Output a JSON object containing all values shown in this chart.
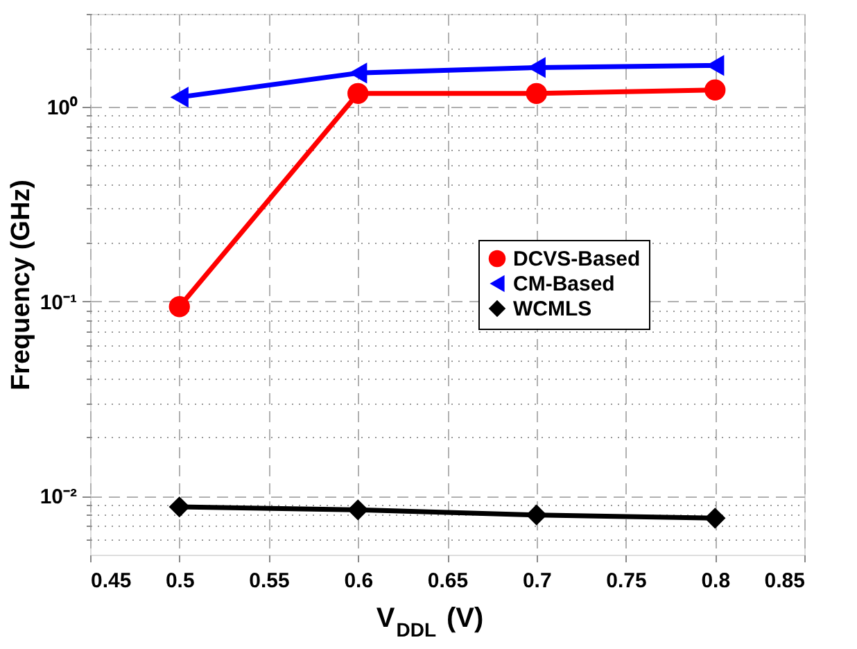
{
  "chart_data": {
    "type": "line",
    "xlabel": "V$_{DDL}$ (V)",
    "ylabel": "Frequency (GHz)",
    "x": [
      0.5,
      0.6,
      0.7,
      0.8
    ],
    "series": [
      {
        "name": "DCVS-Based",
        "color": "#ff0000",
        "marker": "circle",
        "values": [
          0.094,
          1.17,
          1.17,
          1.22
        ]
      },
      {
        "name": "CM-Based",
        "color": "#0000ff",
        "marker": "triangle-left",
        "values": [
          1.12,
          1.49,
          1.59,
          1.63
        ]
      },
      {
        "name": "WCMLS",
        "color": "#000000",
        "marker": "diamond",
        "values": [
          0.0088,
          0.0085,
          0.008,
          0.0077
        ]
      }
    ],
    "log": "y",
    "xlim": [
      0.45,
      0.85
    ],
    "xticks": [
      0.45,
      0.5,
      0.55,
      0.6,
      0.65,
      0.7,
      0.75,
      0.8,
      0.85
    ],
    "ylim": [
      0.005,
      3
    ],
    "yticks": [
      {
        "value": 0.006,
        "label": null
      },
      {
        "value": 0.007,
        "label": null
      },
      {
        "value": 0.008,
        "label": null
      },
      {
        "value": 0.009,
        "label": null
      },
      {
        "value": 0.01,
        "label": "10⁻²"
      },
      {
        "value": 0.02,
        "label": null
      },
      {
        "value": 0.03,
        "label": null
      },
      {
        "value": 0.04,
        "label": null
      },
      {
        "value": 0.05,
        "label": null
      },
      {
        "value": 0.06,
        "label": null
      },
      {
        "value": 0.07,
        "label": null
      },
      {
        "value": 0.08,
        "label": null
      },
      {
        "value": 0.09,
        "label": null
      },
      {
        "value": 0.1,
        "label": "10⁻¹"
      },
      {
        "value": 0.2,
        "label": null
      },
      {
        "value": 0.3,
        "label": null
      },
      {
        "value": 0.4,
        "label": null
      },
      {
        "value": 0.5,
        "label": null
      },
      {
        "value": 0.6,
        "label": null
      },
      {
        "value": 0.7,
        "label": null
      },
      {
        "value": 0.8,
        "label": null
      },
      {
        "value": 0.9,
        "label": null
      },
      {
        "value": 1,
        "label": "10⁰"
      },
      {
        "value": 2,
        "label": null
      },
      {
        "value": 3,
        "label": null
      }
    ],
    "grid": true,
    "legend": "right",
    "line_style": "solid"
  }
}
